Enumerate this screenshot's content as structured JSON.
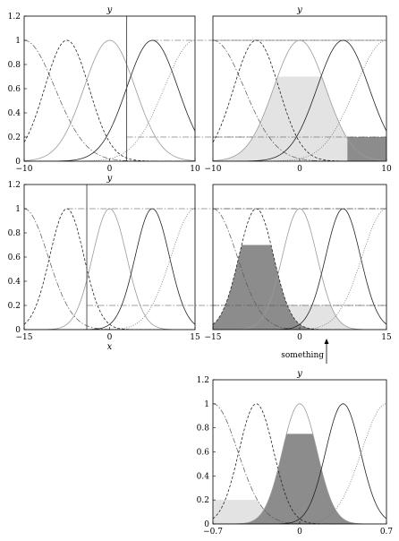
{
  "chart_data": [
    {
      "type": "line",
      "ylabel": "y",
      "xlabel": "",
      "xlim": [
        -10,
        10
      ],
      "ylim": [
        0,
        1.2
      ],
      "xticks": [
        -10,
        0,
        10
      ],
      "yticks": [
        0,
        0.2,
        0.4,
        0.6,
        0.8,
        1,
        1.2
      ],
      "series": [
        {
          "center": -10,
          "width": 3.6,
          "style": "dash-dot"
        },
        {
          "center": -5,
          "width": 2.6,
          "style": "dashed"
        },
        {
          "center": 0,
          "width": 3.0,
          "style": "solid-gray"
        },
        {
          "center": 5,
          "width": 3.0,
          "style": "solid"
        },
        {
          "center": 10,
          "width": 3.6,
          "style": "dotted"
        }
      ],
      "vline": 2,
      "hlines": [
        {
          "y": 1,
          "from": 5,
          "style": "dash-dot"
        },
        {
          "y": 0.2,
          "from": 2,
          "style": "dash-dot"
        }
      ],
      "fills": [],
      "grid": false
    },
    {
      "type": "area",
      "ylabel": "y",
      "xlabel": "",
      "xlim": [
        -10,
        10
      ],
      "ylim": [
        0,
        1.2
      ],
      "xticks": [
        -10,
        0,
        10
      ],
      "yticks": [],
      "series": [
        {
          "center": -10,
          "width": 3.6,
          "style": "dash-dot"
        },
        {
          "center": -5,
          "width": 2.6,
          "style": "dashed"
        },
        {
          "center": 0,
          "width": 3.0,
          "style": "solid-gray"
        },
        {
          "center": 5,
          "width": 3.0,
          "style": "solid"
        },
        {
          "center": 10,
          "width": 3.6,
          "style": "dotted"
        }
      ],
      "vline": null,
      "hlines": [
        {
          "y": 1,
          "from": -10,
          "style": "dash-dot"
        },
        {
          "y": 0.2,
          "from": -10,
          "style": "dash-dot"
        }
      ],
      "fills": [
        {
          "center": 0,
          "width": 3.0,
          "cap": 0.7,
          "shade": "light"
        },
        {
          "center": 10,
          "width": 3.6,
          "cap": 0.2,
          "shade": "dark",
          "from": 5.5
        }
      ],
      "grid": false
    },
    {
      "type": "line",
      "ylabel": "y",
      "xlabel": "x",
      "xlim": [
        -15,
        15
      ],
      "ylim": [
        0,
        1.2
      ],
      "xticks": [
        -15,
        0,
        15
      ],
      "yticks": [
        0,
        0.2,
        0.4,
        0.6,
        0.8,
        1,
        1.2
      ],
      "series": [
        {
          "center": -15,
          "width": 4.2,
          "style": "dash-dot"
        },
        {
          "center": -7.5,
          "width": 3.0,
          "style": "dashed"
        },
        {
          "center": 0,
          "width": 3.0,
          "style": "solid-gray"
        },
        {
          "center": 7.5,
          "width": 3.0,
          "style": "solid"
        },
        {
          "center": 15,
          "width": 4.2,
          "style": "dotted"
        }
      ],
      "vline": -4,
      "hlines": [
        {
          "y": 1,
          "from": -7.5,
          "style": "dash-dot"
        },
        {
          "y": 0.2,
          "from": -4,
          "style": "dash-dot"
        }
      ],
      "fills": [],
      "grid": false
    },
    {
      "type": "area",
      "ylabel": "",
      "xlabel": "",
      "xlim": [
        -15,
        15
      ],
      "ylim": [
        0,
        1.2
      ],
      "xticks": [
        -15,
        0,
        15
      ],
      "yticks": [],
      "series": [
        {
          "center": -15,
          "width": 4.2,
          "style": "dash-dot"
        },
        {
          "center": -7.5,
          "width": 3.0,
          "style": "dashed"
        },
        {
          "center": 0,
          "width": 3.0,
          "style": "solid-gray"
        },
        {
          "center": 7.5,
          "width": 3.0,
          "style": "solid"
        },
        {
          "center": 15,
          "width": 4.2,
          "style": "dotted"
        }
      ],
      "vline": null,
      "hlines": [
        {
          "y": 1,
          "from": -15,
          "style": "dash-dot"
        },
        {
          "y": 0.2,
          "from": -15,
          "style": "dash-dot"
        }
      ],
      "fills": [
        {
          "center": 0,
          "width": 3.0,
          "cap": 0.2,
          "shade": "light"
        },
        {
          "center": -7.5,
          "width": 3.0,
          "cap": 0.7,
          "shade": "dark"
        }
      ],
      "grid": false
    },
    {
      "type": "area",
      "ylabel": "y",
      "xlabel": "",
      "xlim": [
        -0.7,
        0.7
      ],
      "ylim": [
        0,
        1.2
      ],
      "xticks": [
        -0.7,
        0,
        0.7
      ],
      "yticks": [
        0,
        0.2,
        0.4,
        0.6,
        0.8,
        1,
        1.2
      ],
      "series": [
        {
          "center": -0.7,
          "width": 0.2,
          "style": "dash-dot"
        },
        {
          "center": -0.35,
          "width": 0.14,
          "style": "dashed"
        },
        {
          "center": 0,
          "width": 0.14,
          "style": "solid-gray"
        },
        {
          "center": 0.35,
          "width": 0.14,
          "style": "solid"
        },
        {
          "center": 0.7,
          "width": 0.2,
          "style": "dotted"
        }
      ],
      "vline": null,
      "hlines": [],
      "fills": [
        {
          "center": -0.7,
          "width": 0.2,
          "cap": 0.2,
          "shade": "light"
        },
        {
          "center": 0,
          "width": 0.14,
          "cap": 0.75,
          "shade": "dark"
        }
      ],
      "grid": false
    }
  ],
  "annotation": {
    "text": "something"
  },
  "colors": {
    "light_fill": "#e3e3e3",
    "dark_fill": "#8c8c8c",
    "axis": "#000000",
    "gray_line": "#9a9a9a"
  }
}
